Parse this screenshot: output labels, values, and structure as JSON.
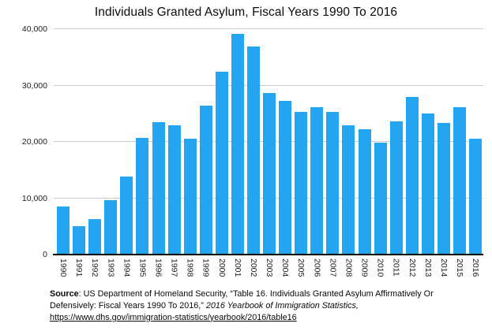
{
  "title": "Individuals Granted Asylum, Fiscal Years 1990 To 2016",
  "chart_data": {
    "type": "bar",
    "title": "Individuals Granted Asylum, Fiscal Years 1990 To 2016",
    "categories": [
      "1990",
      "1991",
      "1992",
      "1993",
      "1994",
      "1995",
      "1996",
      "1997",
      "1998",
      "1999",
      "2000",
      "2001",
      "2002",
      "2003",
      "2004",
      "2005",
      "2006",
      "2007",
      "2008",
      "2009",
      "2010",
      "2011",
      "2012",
      "2013",
      "2014",
      "2015",
      "2016"
    ],
    "values": [
      8500,
      5000,
      6300,
      9700,
      13800,
      20700,
      23500,
      22900,
      20500,
      26500,
      32500,
      39200,
      36900,
      28700,
      27300,
      25300,
      26100,
      25300,
      22900,
      22200,
      19800,
      23700,
      28000,
      25100,
      23400,
      26100,
      20500
    ],
    "xlabel": "",
    "ylabel": "",
    "ylim": [
      0,
      40000
    ],
    "y_tick_values": [
      0,
      10000,
      20000,
      30000,
      40000
    ],
    "y_tick_labels": [
      "0",
      "10,000",
      "20,000",
      "30,000",
      "40,000"
    ],
    "grid": "horizontal",
    "legend": "none",
    "x_label_rotation": "vertical"
  },
  "colors": {
    "bar": "#23a5f2",
    "gridline": "#cccccc",
    "axis_line": "#000000",
    "axis_label": "#222222",
    "title_text": "#0a0a0a",
    "background": "#ffffff"
  },
  "source": {
    "label": "Source",
    "text": ": US Department of Homeland Security, “Table 16. Individuals Granted Asylum Affirmatively Or Defensively: Fiscal Years 1990 To 2016,” ",
    "citation_italic": "2016 Yearbook of Immigration Statistics,",
    "link": "https://www.dhs.gov/immigration-statistics/yearbook/2016/table16"
  }
}
